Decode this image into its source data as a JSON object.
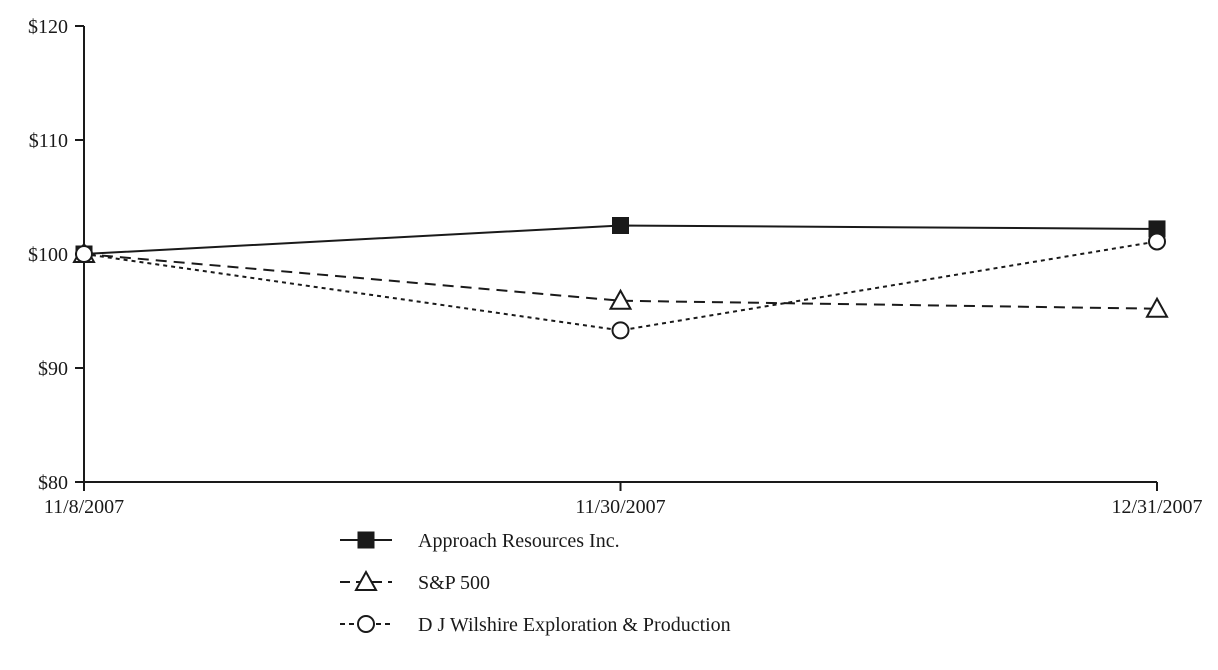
{
  "chart_data": {
    "type": "line",
    "categories": [
      "11/8/2007",
      "11/30/2007",
      "12/31/2007"
    ],
    "ylim": [
      80,
      120
    ],
    "yticks": [
      80,
      90,
      100,
      110,
      120
    ],
    "ytick_labels": [
      "$80",
      "$90",
      "$100",
      "$110",
      "$120"
    ],
    "grid": false,
    "legend_position": "bottom",
    "series": [
      {
        "name": "Approach Resources Inc.",
        "values": [
          100,
          102.5,
          102.2
        ],
        "line_style": "solid",
        "marker": "filled-square"
      },
      {
        "name": "S&P 500",
        "values": [
          100,
          95.9,
          95.2
        ],
        "line_style": "dashed",
        "marker": "open-triangle"
      },
      {
        "name": "D J Wilshire Exploration & Production",
        "values": [
          100,
          93.3,
          101.1
        ],
        "line_style": "dotted",
        "marker": "open-circle"
      }
    ],
    "colors": {
      "line": "#1a1a1a",
      "background": "#ffffff"
    }
  }
}
